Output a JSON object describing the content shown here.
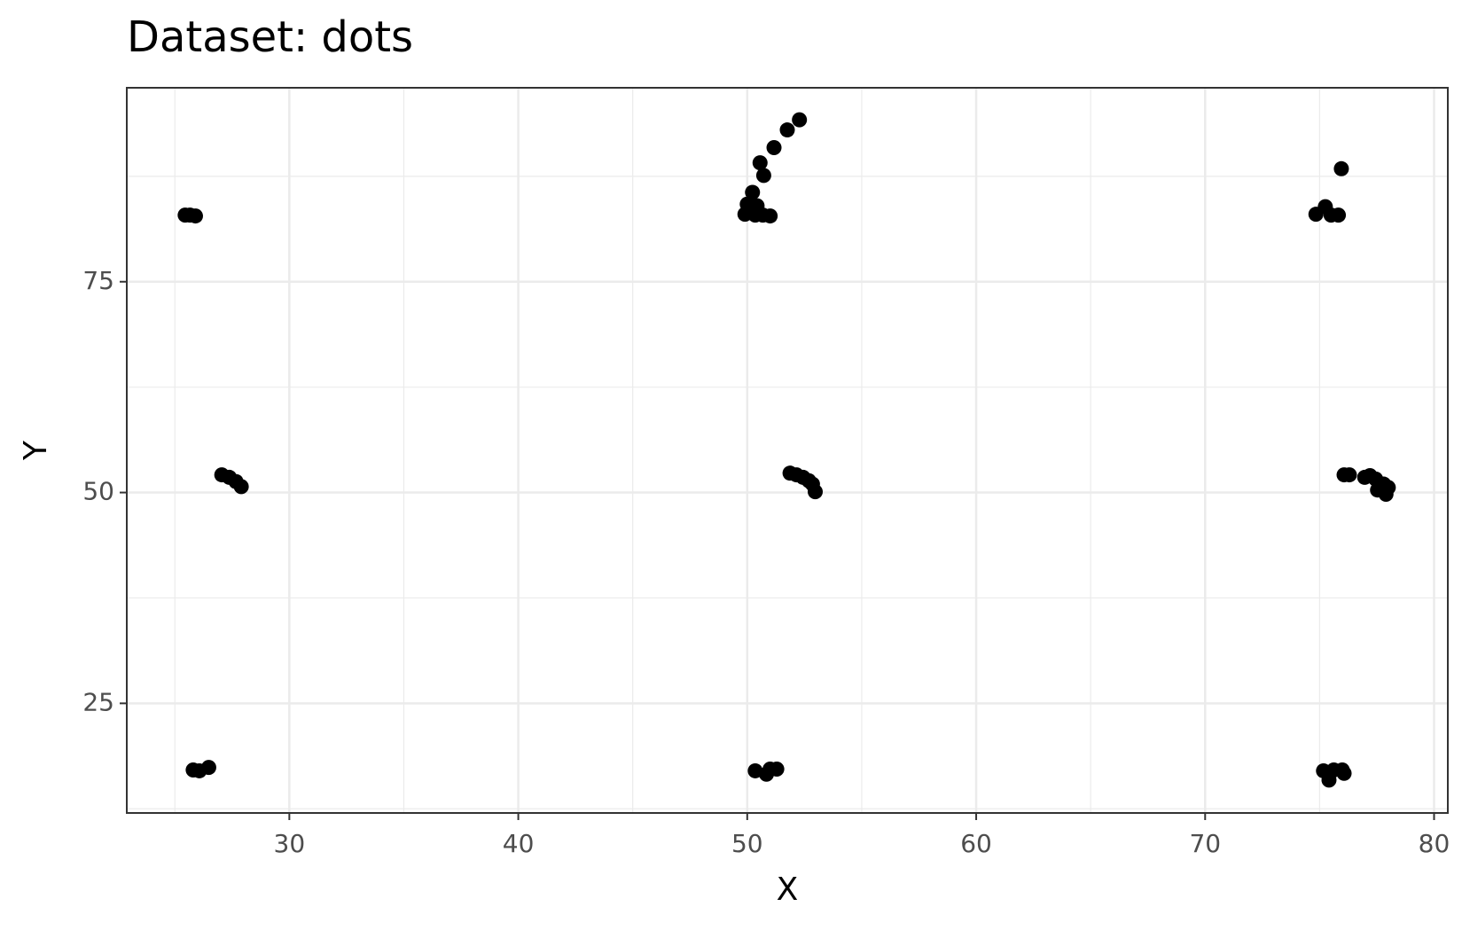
{
  "chart_data": {
    "type": "scatter",
    "title": "Dataset: dots",
    "x_label": "X",
    "y_label": "Y",
    "color": "#000000",
    "grid": true,
    "x": [
      25.45,
      25.66,
      25.9,
      27.05,
      27.38,
      27.67,
      27.9,
      25.8,
      26.07,
      26.48,
      52.28,
      51.75,
      51.17,
      50.56,
      50.72,
      50.23,
      50.0,
      50.1,
      50.43,
      49.9,
      50.35,
      50.68,
      51.0,
      51.87,
      52.15,
      52.44,
      52.69,
      52.85,
      52.97,
      50.35,
      50.84,
      51.0,
      51.29,
      74.84,
      75.25,
      75.5,
      75.82,
      75.95,
      76.07,
      76.3,
      76.97,
      77.2,
      77.45,
      77.53,
      77.8,
      77.9,
      78.0,
      75.17,
      75.41,
      75.62,
      75.99,
      76.07
    ],
    "values": [
      82.9,
      82.9,
      82.8,
      52.1,
      51.8,
      51.3,
      50.7,
      17.1,
      17.0,
      17.4,
      94.2,
      93.0,
      90.9,
      89.1,
      87.6,
      85.6,
      84.2,
      83.8,
      84.0,
      83.0,
      82.9,
      82.9,
      82.8,
      52.3,
      52.1,
      51.8,
      51.4,
      51.0,
      50.1,
      17.0,
      16.6,
      17.2,
      17.2,
      83.0,
      83.9,
      82.9,
      82.9,
      88.4,
      52.1,
      52.1,
      51.8,
      52.0,
      51.6,
      50.3,
      51.0,
      49.8,
      50.6,
      17.0,
      15.9,
      17.1,
      17.1,
      16.7
    ],
    "xlim": [
      22.9,
      80.6
    ],
    "ylim": [
      12.0,
      98.0
    ],
    "xticks": [
      30,
      40,
      50,
      60,
      70,
      80
    ],
    "yticks": [
      25,
      50,
      75
    ]
  }
}
